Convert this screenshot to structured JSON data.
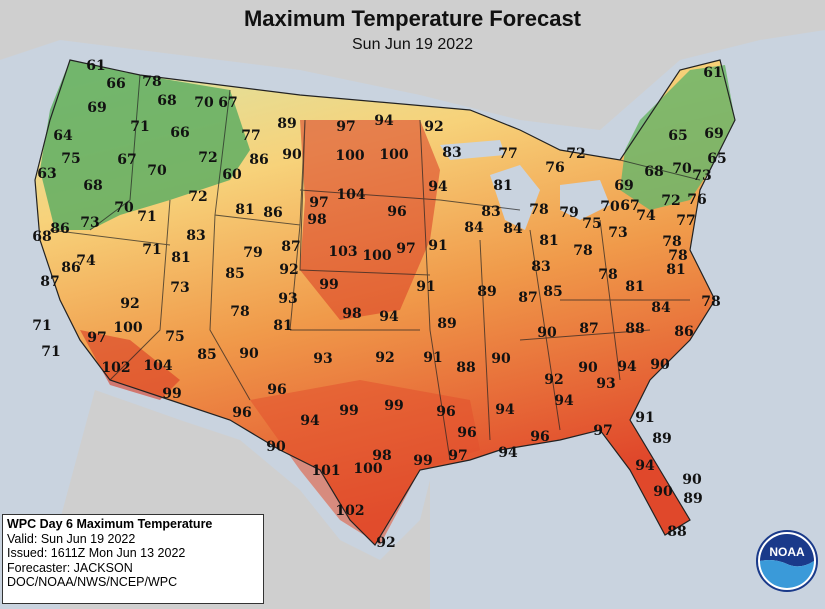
{
  "title": "Maximum Temperature Forecast",
  "subtitle": "Sun Jun 19 2022",
  "legend_colors": {
    "cool": "#4f9e5a",
    "mild": "#d9e6a8",
    "warm": "#f7d27a",
    "hot": "#f09a4a",
    "very_hot": "#e0482b",
    "ocean": "#c9d3df",
    "land": "#cfcfcf"
  },
  "info_box": {
    "heading": "WPC Day 6 Maximum Temperature",
    "valid": "Valid: Sun Jun 19 2022",
    "issued": "Issued: 1611Z Mon Jun 13 2022",
    "forecaster": "Forecaster: JACKSON",
    "agency": "DOC/NOAA/NWS/NCEP/WPC"
  },
  "logo": {
    "text": "NOAA",
    "icon": "noaa-logo-icon"
  },
  "temperatures": [
    {
      "name": "wa-nw",
      "value": "61"
    },
    {
      "name": "wa-2",
      "value": "66"
    },
    {
      "name": "wa-3",
      "value": "78"
    },
    {
      "name": "wa-4",
      "value": "69"
    },
    {
      "name": "wa-5",
      "value": "68"
    },
    {
      "name": "id-n",
      "value": "70"
    },
    {
      "name": "mt-nw",
      "value": "67"
    },
    {
      "name": "or-coast",
      "value": "64"
    },
    {
      "name": "or-2",
      "value": "71"
    },
    {
      "name": "id-2",
      "value": "66"
    },
    {
      "name": "mt-2",
      "value": "77"
    },
    {
      "name": "mt-3",
      "value": "89"
    },
    {
      "name": "nd-w",
      "value": "97"
    },
    {
      "name": "nd-n",
      "value": "94"
    },
    {
      "name": "mn-n",
      "value": "92"
    },
    {
      "name": "or-3",
      "value": "75"
    },
    {
      "name": "or-4",
      "value": "67"
    },
    {
      "name": "mt-4",
      "value": "72"
    },
    {
      "name": "mt-5",
      "value": "86"
    },
    {
      "name": "mt-6",
      "value": "90"
    },
    {
      "name": "nd-1",
      "value": "100"
    },
    {
      "name": "nd-2",
      "value": "100"
    },
    {
      "name": "mn-1",
      "value": "83"
    },
    {
      "name": "wi-n",
      "value": "77"
    },
    {
      "name": "mi-up",
      "value": "72"
    },
    {
      "name": "me-n",
      "value": "61"
    },
    {
      "name": "ca-nc",
      "value": "63"
    },
    {
      "name": "or-5",
      "value": "70"
    },
    {
      "name": "wy-1",
      "value": "60"
    },
    {
      "name": "mi-1",
      "value": "76"
    },
    {
      "name": "me-1",
      "value": "65"
    },
    {
      "name": "me-2",
      "value": "69"
    },
    {
      "name": "ca-1",
      "value": "68"
    },
    {
      "name": "sd-1",
      "value": "104"
    },
    {
      "name": "mn-2",
      "value": "94"
    },
    {
      "name": "wi-1",
      "value": "81"
    },
    {
      "name": "ny-1",
      "value": "68"
    },
    {
      "name": "vt-1",
      "value": "70"
    },
    {
      "name": "nh-1",
      "value": "65"
    },
    {
      "name": "ma-1",
      "value": "73"
    },
    {
      "name": "id-3",
      "value": "72"
    },
    {
      "name": "ny-2",
      "value": "69"
    },
    {
      "name": "ca-2",
      "value": "70"
    },
    {
      "name": "nv-1",
      "value": "71"
    },
    {
      "name": "wy-2",
      "value": "81"
    },
    {
      "name": "wy-3",
      "value": "86"
    },
    {
      "name": "sd-2",
      "value": "97"
    },
    {
      "name": "sd-3",
      "value": "96"
    },
    {
      "name": "ia-1",
      "value": "83"
    },
    {
      "name": "mi-2",
      "value": "78"
    },
    {
      "name": "mi-3",
      "value": "79"
    },
    {
      "name": "mi-4",
      "value": "75"
    },
    {
      "name": "ny-3",
      "value": "70"
    },
    {
      "name": "ny-4",
      "value": "67"
    },
    {
      "name": "ny-5",
      "value": "74"
    },
    {
      "name": "ct-1",
      "value": "72"
    },
    {
      "name": "ma-2",
      "value": "76"
    },
    {
      "name": "ri-1",
      "value": "77"
    },
    {
      "name": "ca-3",
      "value": "73"
    },
    {
      "name": "ne-1",
      "value": "98"
    },
    {
      "name": "ia-2",
      "value": "84"
    },
    {
      "name": "il-1",
      "value": "84"
    },
    {
      "name": "ca-4",
      "value": "68"
    },
    {
      "name": "ca-5",
      "value": "86"
    },
    {
      "name": "ut-1",
      "value": "83"
    },
    {
      "name": "pa-1",
      "value": "73"
    },
    {
      "name": "nj-1",
      "value": "78"
    },
    {
      "name": "nv-2",
      "value": "71"
    },
    {
      "name": "co-1",
      "value": "79"
    },
    {
      "name": "ne-2",
      "value": "87"
    },
    {
      "name": "ne-3",
      "value": "103"
    },
    {
      "name": "ne-4",
      "value": "100"
    },
    {
      "name": "ia-3",
      "value": "97"
    },
    {
      "name": "il-2",
      "value": "91"
    },
    {
      "name": "in-1",
      "value": "81"
    },
    {
      "name": "oh-1",
      "value": "78"
    },
    {
      "name": "ca-6",
      "value": "74"
    },
    {
      "name": "ut-2",
      "value": "81"
    },
    {
      "name": "md-1",
      "value": "78"
    },
    {
      "name": "ca-7",
      "value": "86"
    },
    {
      "name": "co-2",
      "value": "85"
    },
    {
      "name": "co-3",
      "value": "92"
    },
    {
      "name": "ky-1",
      "value": "83"
    },
    {
      "name": "wv-1",
      "value": "78"
    },
    {
      "name": "va-1",
      "value": "81"
    },
    {
      "name": "ca-8",
      "value": "87"
    },
    {
      "name": "ut-3",
      "value": "73"
    },
    {
      "name": "ks-1",
      "value": "99"
    },
    {
      "name": "mo-1",
      "value": "91"
    },
    {
      "name": "il-3",
      "value": "89"
    },
    {
      "name": "ky-2",
      "value": "87"
    },
    {
      "name": "ky-3",
      "value": "85"
    },
    {
      "name": "va-2",
      "value": "81"
    },
    {
      "name": "az-n",
      "value": "92"
    },
    {
      "name": "co-4",
      "value": "93"
    },
    {
      "name": "nc-1",
      "value": "84"
    },
    {
      "name": "va-3",
      "value": "78"
    },
    {
      "name": "nm-n",
      "value": "78"
    },
    {
      "name": "ks-2",
      "value": "98"
    },
    {
      "name": "ks-3",
      "value": "94"
    },
    {
      "name": "mo-2",
      "value": "89"
    },
    {
      "name": "ca-9",
      "value": "71"
    },
    {
      "name": "ca-10",
      "value": "100"
    },
    {
      "name": "ok-1",
      "value": "81"
    },
    {
      "name": "tn-1",
      "value": "90"
    },
    {
      "name": "tn-2",
      "value": "87"
    },
    {
      "name": "nc-2",
      "value": "88"
    },
    {
      "name": "nc-3",
      "value": "86"
    },
    {
      "name": "ca-11",
      "value": "97"
    },
    {
      "name": "az-1",
      "value": "75"
    },
    {
      "name": "ca-12",
      "value": "71"
    },
    {
      "name": "az-2",
      "value": "85"
    },
    {
      "name": "nm-1",
      "value": "90"
    },
    {
      "name": "tx-pan",
      "value": "93"
    },
    {
      "name": "ok-2",
      "value": "92"
    },
    {
      "name": "ar-1",
      "value": "91"
    },
    {
      "name": "ms-1",
      "value": "90"
    },
    {
      "name": "ms-2",
      "value": "88"
    },
    {
      "name": "ga-1",
      "value": "90"
    },
    {
      "name": "sc-1",
      "value": "94"
    },
    {
      "name": "sc-2",
      "value": "90"
    },
    {
      "name": "ca-se",
      "value": "102"
    },
    {
      "name": "az-3",
      "value": "104"
    },
    {
      "name": "al-1",
      "value": "92"
    },
    {
      "name": "ga-2",
      "value": "93"
    },
    {
      "name": "az-4",
      "value": "99"
    },
    {
      "name": "nm-2",
      "value": "96"
    },
    {
      "name": "ga-3",
      "value": "94"
    },
    {
      "name": "tx-1",
      "value": "99"
    },
    {
      "name": "tx-2",
      "value": "99"
    },
    {
      "name": "la-1",
      "value": "96"
    },
    {
      "name": "la-2",
      "value": "94"
    },
    {
      "name": "nm-3",
      "value": "96"
    },
    {
      "name": "tx-3",
      "value": "94"
    },
    {
      "name": "ga-4",
      "value": "91"
    },
    {
      "name": "la-3",
      "value": "96"
    },
    {
      "name": "fl-1",
      "value": "97"
    },
    {
      "name": "tx-4",
      "value": "90"
    },
    {
      "name": "fl-2",
      "value": "89"
    },
    {
      "name": "fl-pan",
      "value": "96"
    },
    {
      "name": "tx-5",
      "value": "98"
    },
    {
      "name": "tx-6",
      "value": "99"
    },
    {
      "name": "tx-7",
      "value": "97"
    },
    {
      "name": "la-4",
      "value": "94"
    },
    {
      "name": "tx-8",
      "value": "101"
    },
    {
      "name": "tx-9",
      "value": "100"
    },
    {
      "name": "fl-3",
      "value": "94"
    },
    {
      "name": "fl-4",
      "value": "90"
    },
    {
      "name": "fl-5",
      "value": "90"
    },
    {
      "name": "fl-6",
      "value": "89"
    },
    {
      "name": "tx-10",
      "value": "102"
    },
    {
      "name": "fl-keys",
      "value": "88"
    },
    {
      "name": "tx-s",
      "value": "92"
    }
  ]
}
